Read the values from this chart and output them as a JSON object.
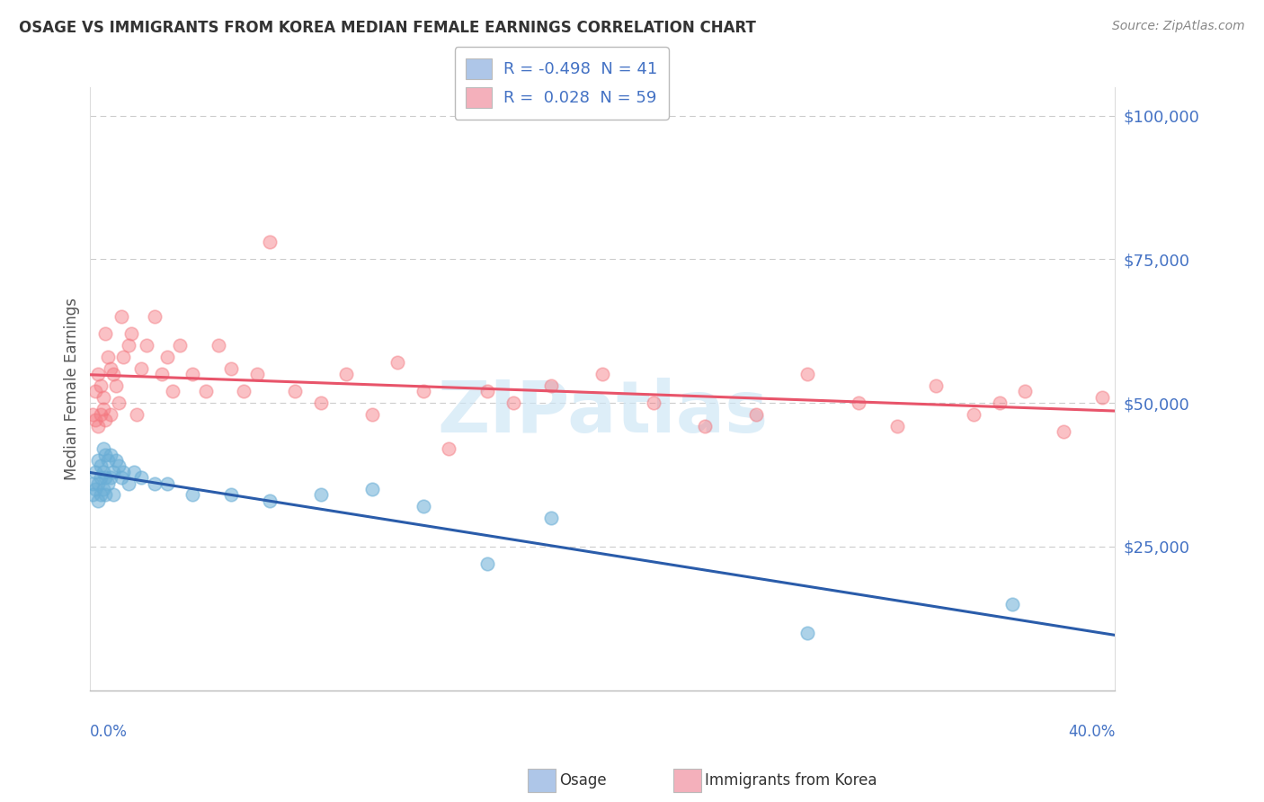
{
  "title": "OSAGE VS IMMIGRANTS FROM KOREA MEDIAN FEMALE EARNINGS CORRELATION CHART",
  "source": "Source: ZipAtlas.com",
  "ylabel": "Median Female Earnings",
  "xlim": [
    0.0,
    0.4
  ],
  "ylim": [
    0,
    105000
  ],
  "ytick_vals": [
    0,
    25000,
    50000,
    75000,
    100000
  ],
  "ytick_labels": [
    "",
    "$25,000",
    "$50,000",
    "$75,000",
    "$100,000"
  ],
  "legend_label1": "R = -0.498  N = 41",
  "legend_label2": "R =  0.028  N = 59",
  "legend_patch1_color": "#aec6e8",
  "legend_patch2_color": "#f4b0bb",
  "series1_name": "Osage",
  "series2_name": "Immigrants from Korea",
  "series1_dot_color": "#6aaed6",
  "series2_dot_color": "#f4777f",
  "series1_line_color": "#2a5caa",
  "series2_line_color": "#e8546a",
  "watermark": "ZIPatlas",
  "background_color": "#ffffff",
  "grid_color": "#cccccc",
  "axis_label_color": "#4472c4",
  "title_color": "#333333",
  "source_color": "#888888",
  "osage_x": [
    0.001,
    0.001,
    0.002,
    0.002,
    0.003,
    0.003,
    0.003,
    0.004,
    0.004,
    0.004,
    0.005,
    0.005,
    0.005,
    0.006,
    0.006,
    0.006,
    0.007,
    0.007,
    0.008,
    0.008,
    0.009,
    0.009,
    0.01,
    0.011,
    0.012,
    0.013,
    0.015,
    0.017,
    0.02,
    0.025,
    0.03,
    0.04,
    0.055,
    0.07,
    0.09,
    0.11,
    0.13,
    0.155,
    0.18,
    0.28,
    0.36
  ],
  "osage_y": [
    36000,
    34000,
    38000,
    35000,
    40000,
    36000,
    33000,
    39000,
    37000,
    34000,
    42000,
    38000,
    35000,
    41000,
    37000,
    34000,
    40000,
    36000,
    41000,
    37000,
    38000,
    34000,
    40000,
    39000,
    37000,
    38000,
    36000,
    38000,
    37000,
    36000,
    36000,
    34000,
    34000,
    33000,
    34000,
    35000,
    32000,
    22000,
    30000,
    10000,
    15000
  ],
  "korea_x": [
    0.001,
    0.002,
    0.002,
    0.003,
    0.003,
    0.004,
    0.004,
    0.005,
    0.005,
    0.006,
    0.006,
    0.007,
    0.008,
    0.008,
    0.009,
    0.01,
    0.011,
    0.012,
    0.013,
    0.015,
    0.016,
    0.018,
    0.02,
    0.022,
    0.025,
    0.028,
    0.03,
    0.032,
    0.035,
    0.04,
    0.045,
    0.05,
    0.055,
    0.06,
    0.065,
    0.07,
    0.08,
    0.09,
    0.1,
    0.11,
    0.12,
    0.13,
    0.14,
    0.155,
    0.165,
    0.18,
    0.2,
    0.22,
    0.24,
    0.26,
    0.28,
    0.3,
    0.315,
    0.33,
    0.345,
    0.355,
    0.365,
    0.38,
    0.395
  ],
  "korea_y": [
    48000,
    47000,
    52000,
    46000,
    55000,
    48000,
    53000,
    49000,
    51000,
    47000,
    62000,
    58000,
    48000,
    56000,
    55000,
    53000,
    50000,
    65000,
    58000,
    60000,
    62000,
    48000,
    56000,
    60000,
    65000,
    55000,
    58000,
    52000,
    60000,
    55000,
    52000,
    60000,
    56000,
    52000,
    55000,
    78000,
    52000,
    50000,
    55000,
    48000,
    57000,
    52000,
    42000,
    52000,
    50000,
    53000,
    55000,
    50000,
    46000,
    48000,
    55000,
    50000,
    46000,
    53000,
    48000,
    50000,
    52000,
    45000,
    51000
  ]
}
